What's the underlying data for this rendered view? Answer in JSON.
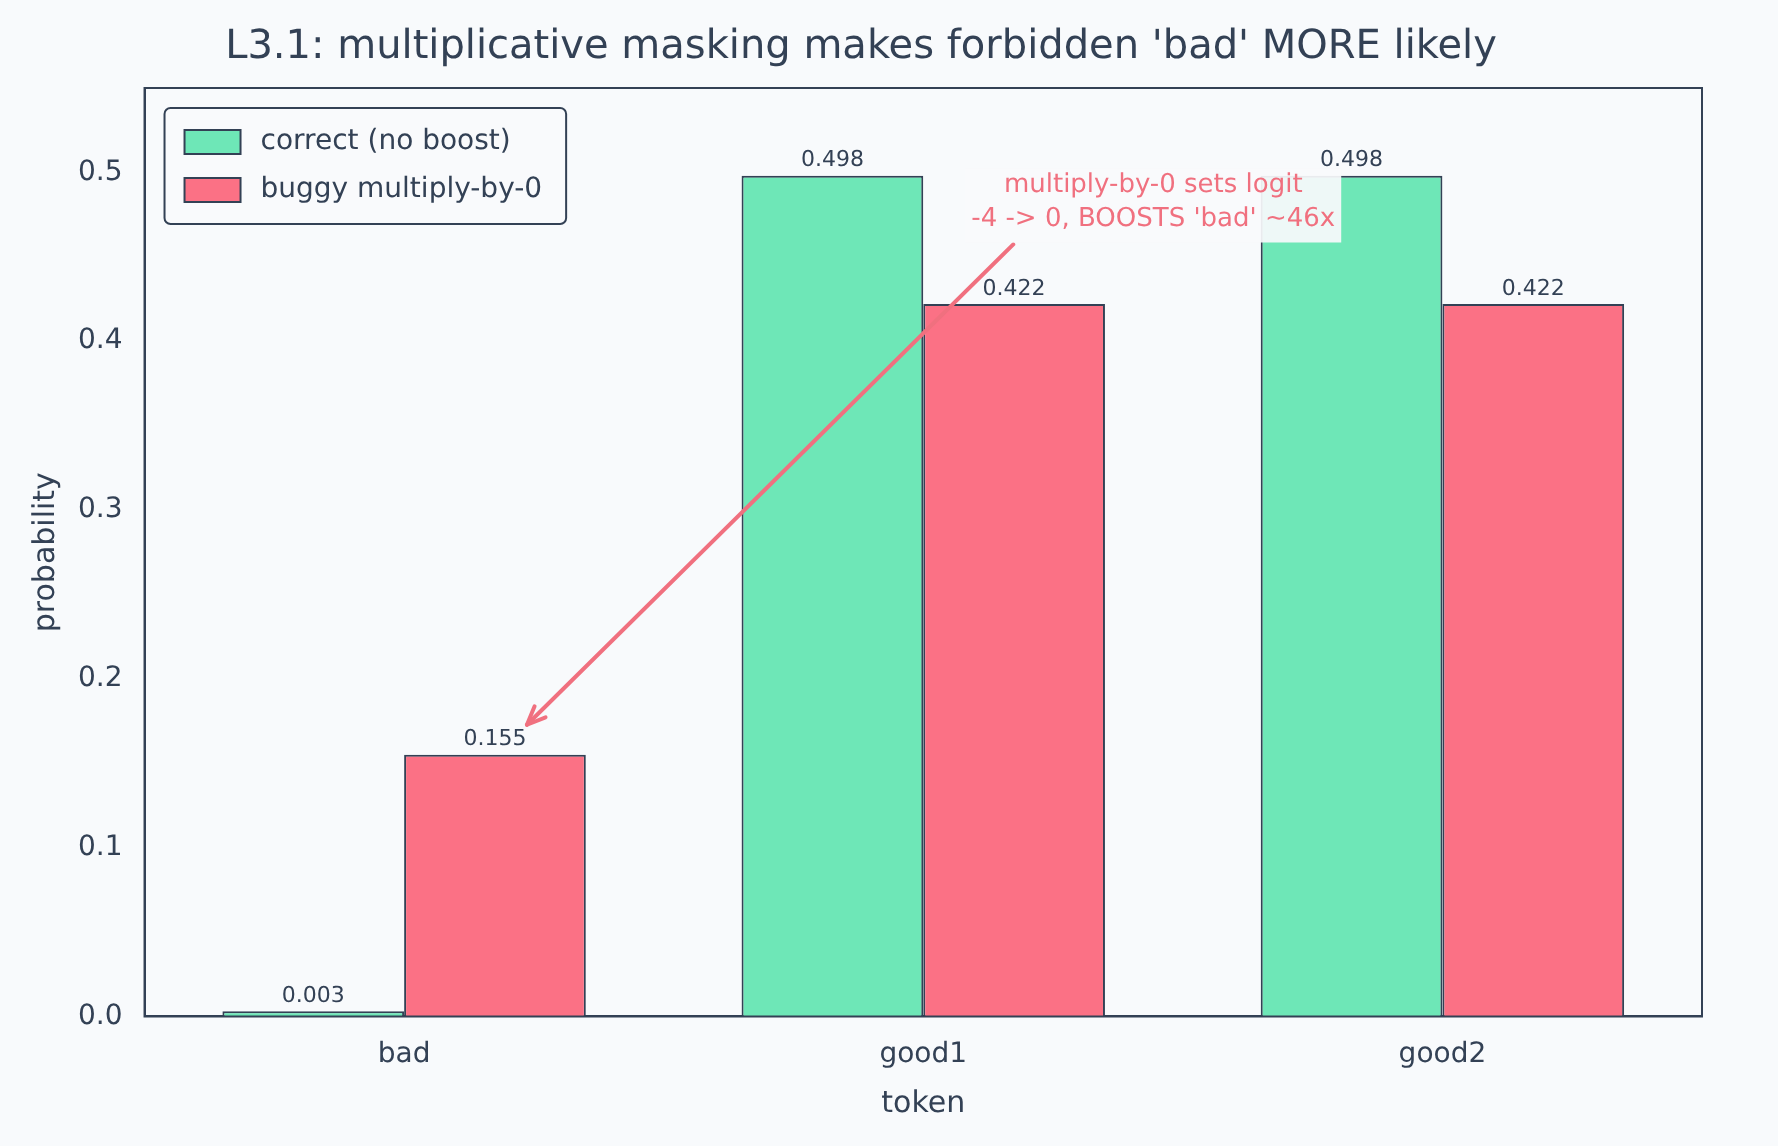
{
  "chart_data": {
    "type": "bar",
    "title": "L3.1: multiplicative masking makes forbidden 'bad' MORE likely",
    "xlabel": "token",
    "ylabel": "probability",
    "categories": [
      "bad",
      "good1",
      "good2"
    ],
    "series": [
      {
        "name": "correct (no boost)",
        "color": "#6ee7b7",
        "values": [
          0.003,
          0.498,
          0.498
        ]
      },
      {
        "name": "buggy multiply-by-0",
        "color": "#fb7185",
        "values": [
          0.155,
          0.422,
          0.422
        ]
      }
    ],
    "ylim": [
      0,
      0.55
    ],
    "yticks": [
      {
        "value": 0,
        "label": "0.0"
      },
      0.1,
      0.2,
      0.3,
      0.4,
      0.5
    ],
    "grid": false,
    "legend": "top left",
    "data_labels": true,
    "annotations": [
      "multiply-by-0 sets logit\n-4 -> 0, BOOSTS 'bad' ~46x"
    ]
  }
}
